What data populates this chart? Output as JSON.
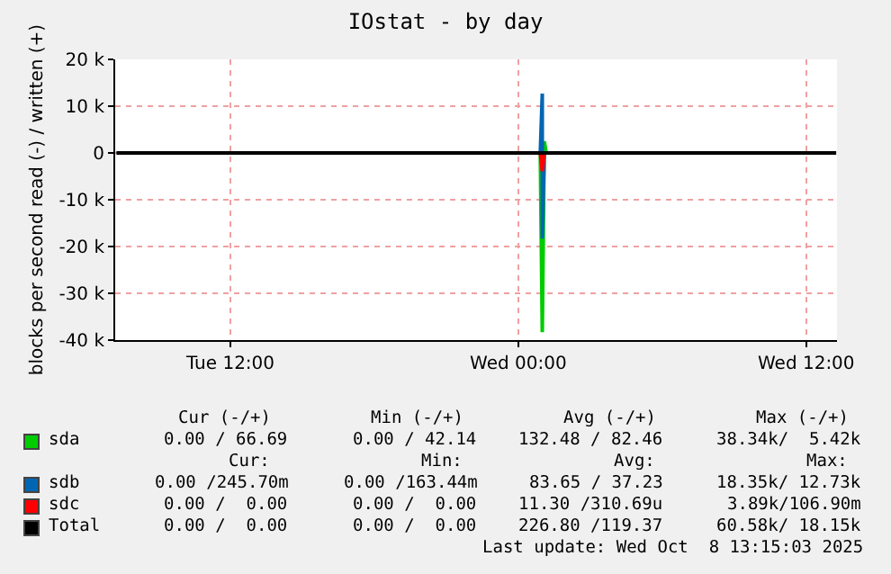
{
  "chart_data": {
    "type": "line",
    "title": "IOstat - by day",
    "ylabel": "blocks per second read (-) / written (+)",
    "x": [
      "2025-10-07T07:15",
      "2025-10-08T13:15"
    ],
    "series": [
      {
        "name": "sda",
        "color": "#00cc00",
        "x": [
          "2025-10-08T00:55",
          "2025-10-08T01:00",
          "2025-10-08T01:05",
          "2025-10-08T01:10"
        ],
        "values": [
          0,
          -38300,
          2500,
          0
        ]
      },
      {
        "name": "sdb",
        "color": "#0066b3",
        "x": [
          "2025-10-08T00:55",
          "2025-10-08T01:00",
          "2025-10-08T01:00",
          "2025-10-08T01:05"
        ],
        "values": [
          0,
          12700,
          -18300,
          0
        ]
      },
      {
        "name": "sdc",
        "color": "#ff0000",
        "x": [
          "2025-10-08T00:55",
          "2025-10-08T01:00",
          "2025-10-08T01:05"
        ],
        "values": [
          0,
          -3900,
          0
        ]
      },
      {
        "name": "Total",
        "color": "#000000",
        "values": [
          0,
          0
        ]
      }
    ],
    "xlim": [
      "2025-10-07T07:12",
      "2025-10-08T13:17"
    ],
    "xticks": [
      {
        "value": "2025-10-07T12:00",
        "label": "Tue 12:00"
      },
      {
        "value": "2025-10-08T00:00",
        "label": "Wed 00:00"
      },
      {
        "value": "2025-10-08T12:00",
        "label": "Wed 12:00"
      }
    ],
    "ylim": [
      -40000,
      20000
    ],
    "yticks": [
      {
        "value": -40000,
        "label": "-40 k"
      },
      {
        "value": -30000,
        "label": "-30 k"
      },
      {
        "value": -20000,
        "label": "-20 k"
      },
      {
        "value": -10000,
        "label": "-10 k"
      },
      0,
      {
        "value": 10000,
        "label": "10 k"
      },
      {
        "value": 20000,
        "label": "20 k"
      }
    ],
    "grid": true,
    "legend": "bottom",
    "marker": "none",
    "line_style": "solid",
    "annotations": [
      "Cur (-/+)",
      "Min (-/+)",
      "Avg (-/+)",
      "Max (-/+)",
      "0.00 / 66.69",
      "0.00 / 42.14",
      "132.48 / 82.46",
      "38.34k/  5.42k",
      "Cur:",
      "Min:",
      "Avg:",
      "Max:",
      "0.00 /245.70m",
      "0.00 /163.44m",
      "83.65 / 37.23",
      "18.35k/ 12.73k",
      "0.00 /  0.00",
      "0.00 /  0.00",
      "11.30 /310.69u",
      "3.89k/106.90m",
      "0.00 /  0.00",
      "0.00 /  0.00",
      "226.80 /119.37",
      "60.58k/ 18.15k",
      "Last update: Wed Oct  8 13:15:03 2025"
    ]
  }
}
